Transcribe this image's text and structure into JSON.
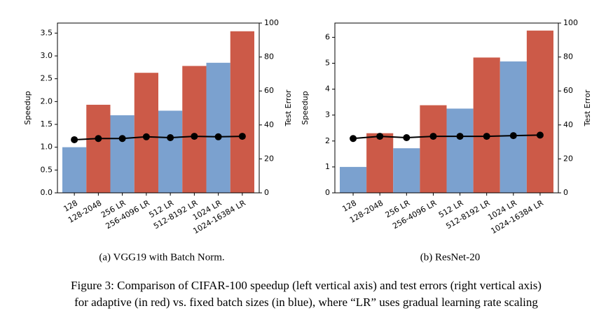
{
  "chart_data": [
    {
      "type": "bar",
      "caption": "(a) VGG19 with Batch Norm.",
      "ylabel": "Speedup",
      "y2label": "Test Error",
      "categories": [
        "128",
        "128-2048",
        "256 LR",
        "256-4096 LR",
        "512 LR",
        "512-8192 LR",
        "1024 LR",
        "1024-16384 LR"
      ],
      "series": [
        {
          "values": [
            1.0,
            1.93,
            1.7,
            2.63,
            1.8,
            2.78,
            2.85,
            3.54
          ],
          "colors": [
            "#7ba1cf",
            "#cc5a48",
            "#7ba1cf",
            "#cc5a48",
            "#7ba1cf",
            "#cc5a48",
            "#7ba1cf",
            "#cc5a48"
          ]
        },
        {
          "type": "line",
          "axis": "y2",
          "color": "#000000",
          "values": [
            31.3,
            32,
            32,
            33,
            32.5,
            33.3,
            33,
            33.3
          ]
        }
      ],
      "ylim": [
        0,
        3.72
      ],
      "yticks": [
        {
          "value": 0,
          "label": "0.0"
        },
        0.5,
        {
          "value": 1,
          "label": "1.0"
        },
        1.5,
        {
          "value": 2,
          "label": "2.0"
        },
        2.5,
        {
          "value": 3,
          "label": "3.0"
        },
        3.5
      ],
      "y2lim": [
        0,
        100
      ],
      "y2ticks": [
        0,
        20,
        40,
        60,
        80,
        100
      ]
    },
    {
      "type": "bar",
      "caption": "(b) ResNet-20",
      "ylabel": "Speedup",
      "y2label": "Test Error",
      "categories": [
        "128",
        "128-2048",
        "256 LR",
        "256-4096 LR",
        "512 LR",
        "512-8192 LR",
        "1024 LR",
        "1024-16384 LR"
      ],
      "series": [
        {
          "values": [
            1.0,
            2.3,
            1.72,
            3.38,
            3.25,
            5.22,
            5.07,
            6.26
          ],
          "colors": [
            "#7ba1cf",
            "#cc5a48",
            "#7ba1cf",
            "#cc5a48",
            "#7ba1cf",
            "#cc5a48",
            "#7ba1cf",
            "#cc5a48"
          ]
        },
        {
          "type": "line",
          "axis": "y2",
          "color": "#000000",
          "values": [
            32,
            33.3,
            32.5,
            33.3,
            33.3,
            33.3,
            33.7,
            34
          ]
        }
      ],
      "ylim": [
        0,
        6.55
      ],
      "yticks": [
        0,
        1,
        2,
        3,
        4,
        5,
        6
      ],
      "y2lim": [
        0,
        100
      ],
      "y2ticks": [
        0,
        20,
        40,
        60,
        80,
        100
      ]
    }
  ],
  "caption": [
    "Figure 3: Comparison of CIFAR-100 speedup (left vertical axis) and test errors (right vertical axis)",
    "for adaptive (in red) vs. fixed batch sizes (in blue), where “LR” uses gradual learning rate scaling"
  ]
}
